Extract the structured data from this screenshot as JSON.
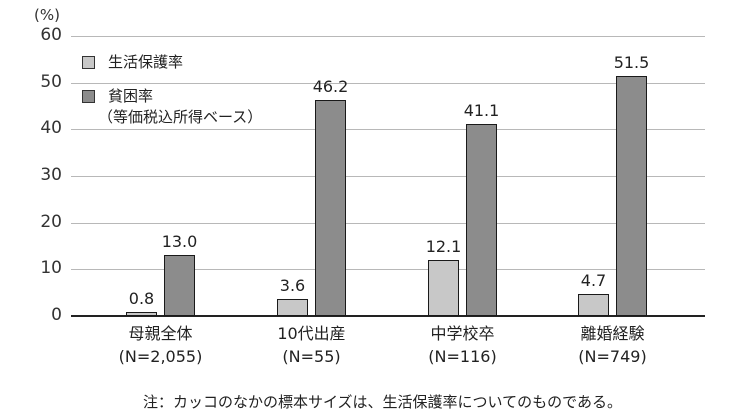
{
  "chart_data": {
    "type": "bar",
    "title": "",
    "ylabel": "(%)",
    "xlabel": "",
    "ylim": [
      0,
      60
    ],
    "yticks": [
      0,
      10,
      20,
      30,
      40,
      50,
      60
    ],
    "grid": true,
    "legend_position": "upper-left",
    "categories": [
      "母親全体",
      "10代出産",
      "中学校卒",
      "離婚経験"
    ],
    "category_sublabels": [
      "(N=2,055)",
      "(N=55)",
      "(N=116)",
      "(N=749)"
    ],
    "series": [
      {
        "name": "生活保護率",
        "color": "#c8c8c8",
        "values": [
          0.8,
          3.6,
          12.1,
          4.7
        ]
      },
      {
        "name": "貧困率（等価税込所得ベース）",
        "color": "#8c8c8c",
        "values": [
          13.0,
          46.2,
          41.1,
          51.5
        ]
      }
    ],
    "annotations": [
      "注：カッコのなかの標本サイズは、生活保護率についてのものである。"
    ]
  },
  "axis": {
    "unit": "(%)",
    "ticks": [
      "0",
      "10",
      "20",
      "30",
      "40",
      "50",
      "60"
    ]
  },
  "legend": {
    "items": [
      {
        "label": "生活保護率",
        "sub": ""
      },
      {
        "label": "貧困率",
        "sub": "（等価税込所得ベース）"
      }
    ]
  },
  "groups": [
    {
      "name": "母親全体",
      "n": "(N=2,055)",
      "light_label": "0.8",
      "dark_label": "13.0"
    },
    {
      "name": "10代出産",
      "n": "(N=55)",
      "light_label": "3.6",
      "dark_label": "46.2"
    },
    {
      "name": "中学校卒",
      "n": "(N=116)",
      "light_label": "12.1",
      "dark_label": "41.1"
    },
    {
      "name": "離婚経験",
      "n": "(N=749)",
      "light_label": "4.7",
      "dark_label": "51.5"
    }
  ],
  "note": "注：カッコのなかの標本サイズは、生活保護率についてのものである。"
}
